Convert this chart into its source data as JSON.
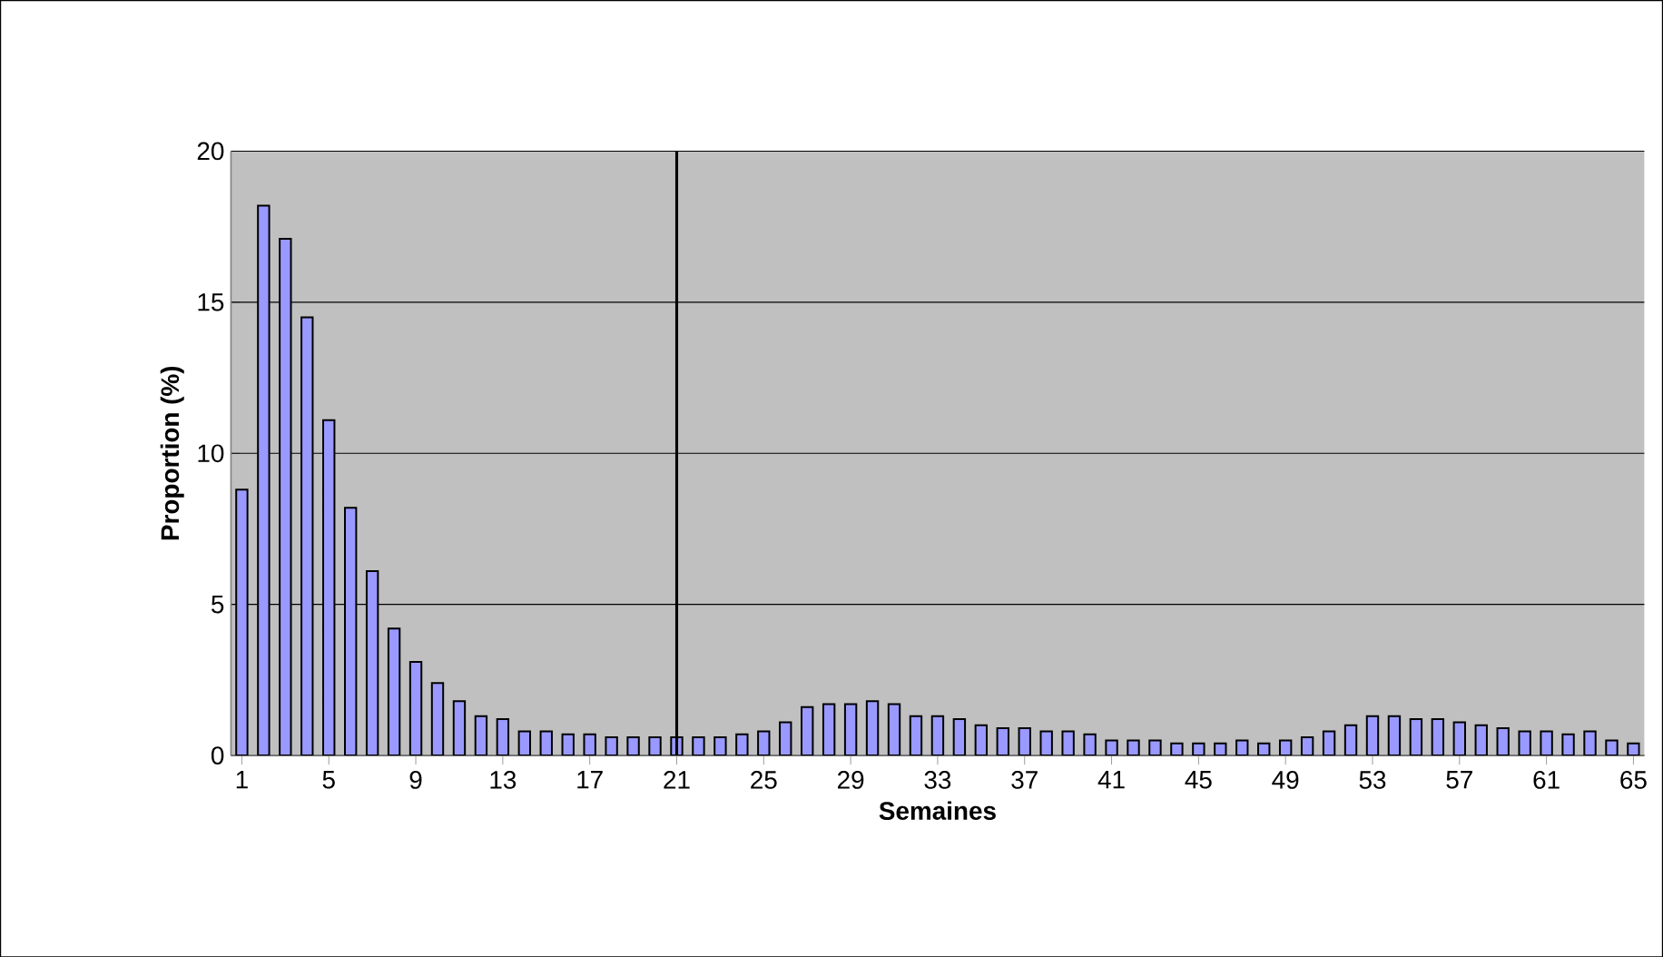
{
  "chart_data": {
    "type": "bar",
    "xlabel": "Semaines",
    "ylabel": "Proportion (%)",
    "x": [
      1,
      2,
      3,
      4,
      5,
      6,
      7,
      8,
      9,
      10,
      11,
      12,
      13,
      14,
      15,
      16,
      17,
      18,
      19,
      20,
      21,
      22,
      23,
      24,
      25,
      26,
      27,
      28,
      29,
      30,
      31,
      32,
      33,
      34,
      35,
      36,
      37,
      38,
      39,
      40,
      41,
      42,
      43,
      44,
      45,
      46,
      47,
      48,
      49,
      50,
      51,
      52,
      53,
      54,
      55,
      56,
      57,
      58,
      59,
      60,
      61,
      62,
      63,
      64,
      65
    ],
    "values": [
      8.8,
      18.2,
      17.1,
      14.5,
      11.1,
      8.2,
      6.1,
      4.2,
      3.1,
      2.4,
      1.8,
      1.3,
      1.2,
      0.8,
      0.8,
      0.7,
      0.7,
      0.6,
      0.6,
      0.6,
      0.6,
      0.6,
      0.6,
      0.7,
      0.8,
      1.1,
      1.6,
      1.7,
      1.7,
      1.8,
      1.7,
      1.3,
      1.3,
      1.2,
      1.0,
      0.9,
      0.9,
      0.8,
      0.8,
      0.7,
      0.5,
      0.5,
      0.5,
      0.4,
      0.4,
      0.4,
      0.5,
      0.4,
      0.5,
      0.6,
      0.8,
      1.0,
      1.3,
      1.3,
      1.2,
      1.2,
      1.1,
      1.0,
      0.9,
      0.8,
      0.8,
      0.7,
      0.8,
      0.5,
      0.4
    ],
    "color": "#9999ff",
    "xlim": [
      0.5,
      65.5
    ],
    "xticks": [
      1,
      5,
      9,
      13,
      17,
      21,
      25,
      29,
      33,
      37,
      41,
      45,
      49,
      53,
      57,
      61,
      65
    ],
    "ylim": [
      0,
      20
    ],
    "yticks": [
      0,
      5,
      10,
      15,
      20
    ],
    "grid": "y",
    "ref_lines": [
      {
        "axis": "x",
        "value": 21,
        "color": "#000000"
      }
    ]
  }
}
